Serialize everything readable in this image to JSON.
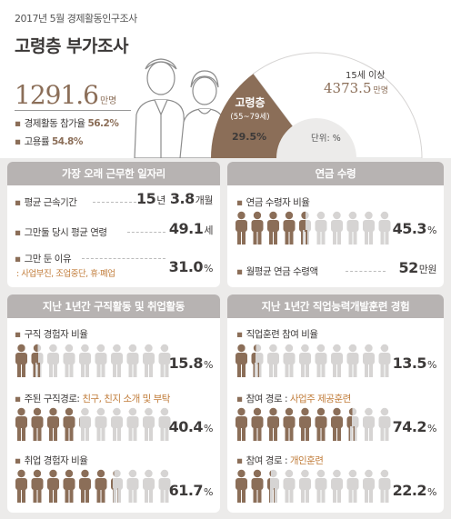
{
  "header": {
    "source": "2017년 5월 경제활동인구조사",
    "title": "고령층 부가조사",
    "population": {
      "value": "1291.6",
      "unit": "만명"
    },
    "stats": [
      {
        "label": "경제활동 참가율",
        "value": "56.2%"
      },
      {
        "label": "고용률",
        "value": "54.8%"
      }
    ],
    "donut": {
      "slice_label": "고령층",
      "slice_sub": "(55~79세)",
      "slice_percent": "29.5%",
      "slice_fraction": 0.295,
      "rest_label": "15세 이상",
      "rest_value": "4373.5",
      "rest_unit": "만명",
      "unit_note": "단위: %"
    }
  },
  "colors": {
    "brown": "#8b6e58",
    "gray_person": "#d6d4d3",
    "panel_head": "#b7b3b2",
    "accent": "#c17d3b"
  },
  "panels": {
    "longest_job": {
      "title": "가장 오래 근무한 일자리",
      "rows": [
        {
          "label": "평균 근속기간",
          "v1": "15",
          "u1": "년",
          "v2": "3.8",
          "u2": "개월"
        },
        {
          "label": "그만둘 당시 평균 연령",
          "v1": "49.1",
          "u1": "세"
        },
        {
          "label": "그만 둔 이유",
          "sub": ": 사업부진, 조업중단, 휴·폐업",
          "v1": "31.0",
          "u1": "%"
        }
      ]
    },
    "pension": {
      "title": "연금 수령",
      "rows": [
        {
          "label": "연금 수령자 비율",
          "percent": 45.3,
          "v1": "45.3",
          "u1": "%"
        },
        {
          "label": "월평균 연금 수령액",
          "v1": "52",
          "u1": "만원"
        }
      ]
    },
    "job_search": {
      "title": "지난 1년간 구직활동 및 취업활동",
      "rows": [
        {
          "label": "구직 경험자 비율",
          "percent": 15.8,
          "v1": "15.8",
          "u1": "%"
        },
        {
          "label": "주된 구직경로:",
          "accent": "친구, 친지 소개 및 부탁",
          "percent": 40.4,
          "v1": "40.4",
          "u1": "%"
        },
        {
          "label": "취업 경험자 비율",
          "percent": 61.7,
          "v1": "61.7",
          "u1": "%"
        }
      ]
    },
    "training": {
      "title": "지난 1년간 직업능력개발훈련 경험",
      "rows": [
        {
          "label": "직업훈련 참여 비율",
          "percent": 13.5,
          "v1": "13.5",
          "u1": "%"
        },
        {
          "label": "참여 경로 :",
          "accent": "사업주 제공훈련",
          "percent": 74.2,
          "v1": "74.2",
          "u1": "%"
        },
        {
          "label": "참여 경로 :",
          "accent": "개인훈련",
          "percent": 22.2,
          "v1": "22.2",
          "u1": "%"
        }
      ]
    }
  }
}
